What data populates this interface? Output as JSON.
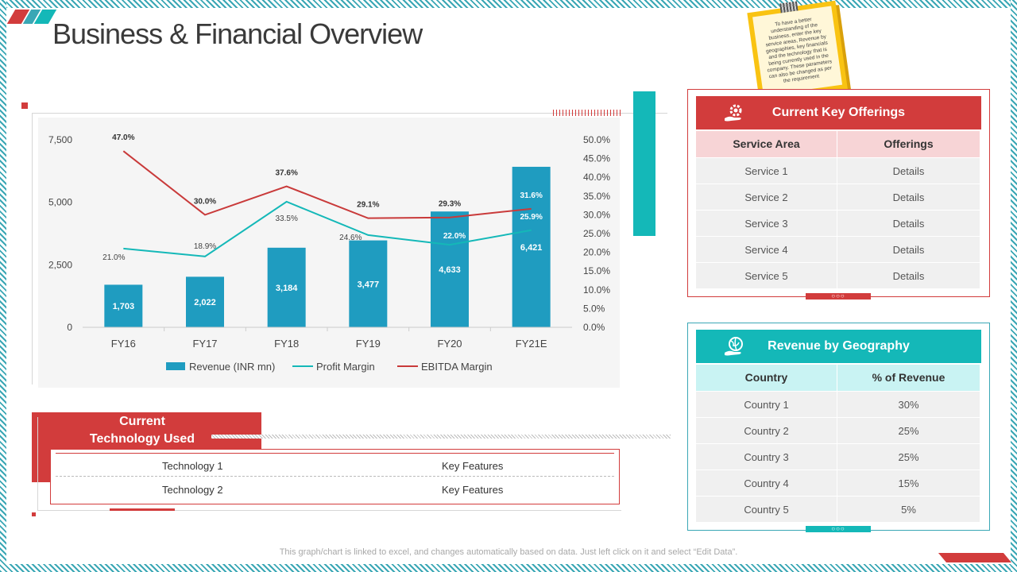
{
  "page": {
    "title": "Business & Financial Overview",
    "footnote": "This graph/chart is linked to excel, and changes automatically based on data. Just left click on it and select “Edit Data”."
  },
  "note": {
    "text": "To have a better understanding of the business, enter the key service areas, Revenue by geographies, key financials and the technology that is being currently used in the company. These parameters can also be changed as per the requirement"
  },
  "colors": {
    "red": "#d23c3c",
    "teal": "#14b8b8",
    "bar": "#1f9cc0",
    "profit_line": "#14b8b8",
    "ebitda_line": "#c93a3a",
    "offer_header_row": "#f7d4d6",
    "geo_header_row": "#c9f3f3"
  },
  "chart_data": {
    "type": "bar",
    "categories": [
      "FY16",
      "FY17",
      "FY18",
      "FY19",
      "FY20",
      "FY21E"
    ],
    "series": [
      {
        "name": "Revenue (INR mn)",
        "type": "bar",
        "axis": "left",
        "values": [
          1703,
          2022,
          3184,
          3477,
          4633,
          6421
        ],
        "labels": [
          "1,703",
          "2,022",
          "3,184",
          "3,477",
          "4,633",
          "6,421"
        ]
      },
      {
        "name": "Profit Margin",
        "type": "line",
        "axis": "right",
        "values": [
          21.0,
          18.9,
          33.5,
          24.6,
          22.0,
          25.9
        ],
        "labels": [
          "21.0%",
          "18.9%",
          "33.5%",
          "24.6%",
          "22.0%",
          "25.9%"
        ]
      },
      {
        "name": "EBITDA Margin",
        "type": "line",
        "axis": "right",
        "values": [
          47.0,
          30.0,
          37.6,
          29.1,
          29.3,
          31.6
        ],
        "labels": [
          "47.0%",
          "30.0%",
          "37.6%",
          "29.1%",
          "29.3%",
          "31.6%"
        ]
      }
    ],
    "y_left": {
      "min": 0,
      "max": 7500,
      "ticks": [
        0,
        2500,
        5000,
        7500
      ],
      "tick_labels": [
        "0",
        "2,500",
        "5,000",
        "7,500"
      ]
    },
    "y_right": {
      "min": 0,
      "max": 50,
      "ticks": [
        0,
        5,
        10,
        15,
        20,
        25,
        30,
        35,
        40,
        45,
        50
      ],
      "tick_labels": [
        "0.0%",
        "5.0%",
        "10.0%",
        "15.0%",
        "20.0%",
        "25.0%",
        "30.0%",
        "35.0%",
        "40.0%",
        "45.0%",
        "50.0%"
      ]
    },
    "grid": false,
    "legend_position": "bottom"
  },
  "technology": {
    "title_line1": "Current",
    "title_line2": "Technology Used",
    "rows": [
      {
        "name": "Technology 1",
        "value": "Key Features"
      },
      {
        "name": "Technology 2",
        "value": "Key Features"
      }
    ]
  },
  "offerings": {
    "title": "Current Key Offerings",
    "icon": "gear-hand-icon",
    "columns": [
      "Service Area",
      "Offerings"
    ],
    "rows": [
      [
        "Service 1",
        "Details"
      ],
      [
        "Service 2",
        "Details"
      ],
      [
        "Service 3",
        "Details"
      ],
      [
        "Service 4",
        "Details"
      ],
      [
        "Service 5",
        "Details"
      ]
    ],
    "dots": "○○○"
  },
  "geography": {
    "title": "Revenue by Geography",
    "icon": "globe-hand-icon",
    "columns": [
      "Country",
      "% of Revenue"
    ],
    "rows": [
      [
        "Country 1",
        "30%"
      ],
      [
        "Country 2",
        "25%"
      ],
      [
        "Country 3",
        "25%"
      ],
      [
        "Country 4",
        "15%"
      ],
      [
        "Country 5",
        "5%"
      ]
    ],
    "dots": "○○○"
  }
}
